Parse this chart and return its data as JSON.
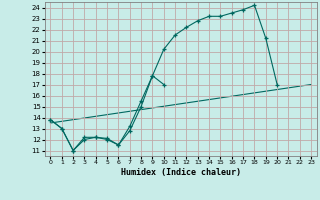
{
  "xlabel": "Humidex (Indice chaleur)",
  "bg_color": "#c8ece8",
  "grid_color": "#c0a8a8",
  "line_color": "#006860",
  "xlim": [
    -0.5,
    23.5
  ],
  "ylim": [
    10.5,
    24.5
  ],
  "xticks": [
    0,
    1,
    2,
    3,
    4,
    5,
    6,
    7,
    8,
    9,
    10,
    11,
    12,
    13,
    14,
    15,
    16,
    17,
    18,
    19,
    20,
    21,
    22,
    23
  ],
  "yticks": [
    11,
    12,
    13,
    14,
    15,
    16,
    17,
    18,
    19,
    20,
    21,
    22,
    23,
    24
  ],
  "line1_x": [
    0,
    1,
    2,
    3,
    4,
    5,
    6,
    7,
    8,
    9,
    10,
    11,
    12,
    13,
    14,
    15,
    16,
    17,
    18,
    19,
    20
  ],
  "line1_y": [
    13.8,
    13.0,
    11.0,
    12.0,
    12.2,
    12.1,
    11.5,
    13.2,
    15.5,
    17.8,
    20.2,
    21.5,
    22.2,
    22.8,
    23.2,
    23.2,
    23.5,
    23.8,
    24.2,
    21.2,
    17.0
  ],
  "line2_x": [
    0,
    1,
    2,
    3,
    4,
    5,
    6,
    7,
    8,
    9,
    10
  ],
  "line2_y": [
    13.8,
    13.0,
    11.0,
    12.2,
    12.2,
    12.0,
    11.5,
    12.8,
    15.0,
    17.8,
    17.0
  ],
  "line3_x": [
    0,
    23
  ],
  "line3_y": [
    13.5,
    17.0
  ]
}
